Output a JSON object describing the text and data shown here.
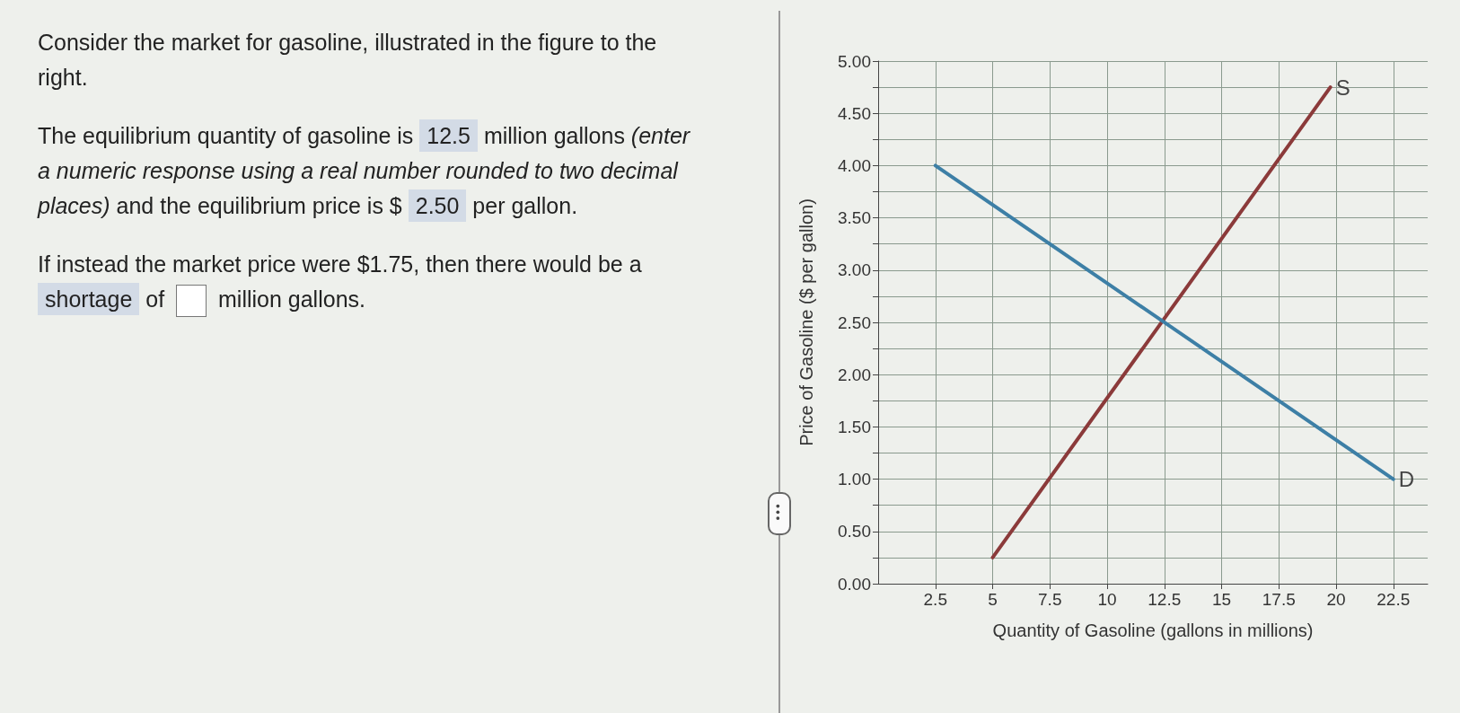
{
  "chart_data": {
    "type": "line",
    "xlabel": "Quantity of Gasoline (gallons in millions)",
    "ylabel": "Price of Gasoline ($ per gallon)",
    "series": [
      {
        "name": "S",
        "color": "#8b3a3a",
        "x": [
          5,
          19.75
        ],
        "values": [
          0.25,
          4.75
        ]
      },
      {
        "name": "D",
        "color": "#3d7fa6",
        "x": [
          2.5,
          22.5
        ],
        "values": [
          4.0,
          1.0
        ]
      }
    ],
    "xlim": [
      0,
      24
    ],
    "xticks": [
      2.5,
      5,
      7.5,
      10,
      12.5,
      15,
      17.5,
      20,
      22.5
    ],
    "ylim": [
      0,
      5
    ],
    "yticks": [
      {
        "value": 0,
        "label": "0.00"
      },
      {
        "value": 0.25,
        "label": null
      },
      {
        "value": 0.5,
        "label": "0.50"
      },
      {
        "value": 0.75,
        "label": null
      },
      {
        "value": 1,
        "label": "1.00"
      },
      {
        "value": 1.25,
        "label": null
      },
      {
        "value": 1.5,
        "label": "1.50"
      },
      {
        "value": 1.75,
        "label": null
      },
      {
        "value": 2,
        "label": "2.00"
      },
      {
        "value": 2.25,
        "label": null
      },
      {
        "value": 2.5,
        "label": "2.50"
      },
      {
        "value": 2.75,
        "label": null
      },
      {
        "value": 3,
        "label": "3.00"
      },
      {
        "value": 3.25,
        "label": null
      },
      {
        "value": 3.5,
        "label": "3.50"
      },
      {
        "value": 3.75,
        "label": null
      },
      {
        "value": 4,
        "label": "4.00"
      },
      {
        "value": 4.25,
        "label": null
      },
      {
        "value": 4.5,
        "label": "4.50"
      },
      {
        "value": 4.75,
        "label": null
      },
      {
        "value": 5,
        "label": "5.00"
      }
    ],
    "grid": true,
    "legend": false,
    "marker": "none",
    "line_style": "solid",
    "annotations": [
      "Consider the market for gasoline, illustrated in the figure to the right.",
      "The equilibrium quantity of gasoline is",
      "12.5",
      "million gallons",
      "(enter a numeric response using a real number rounded to two decimal places)",
      "and the equilibrium price is $",
      "2.50",
      "per gallon.",
      "If instead the market price were $1.75, then there would be a",
      "shortage",
      "of",
      "million gallons."
    ]
  }
}
